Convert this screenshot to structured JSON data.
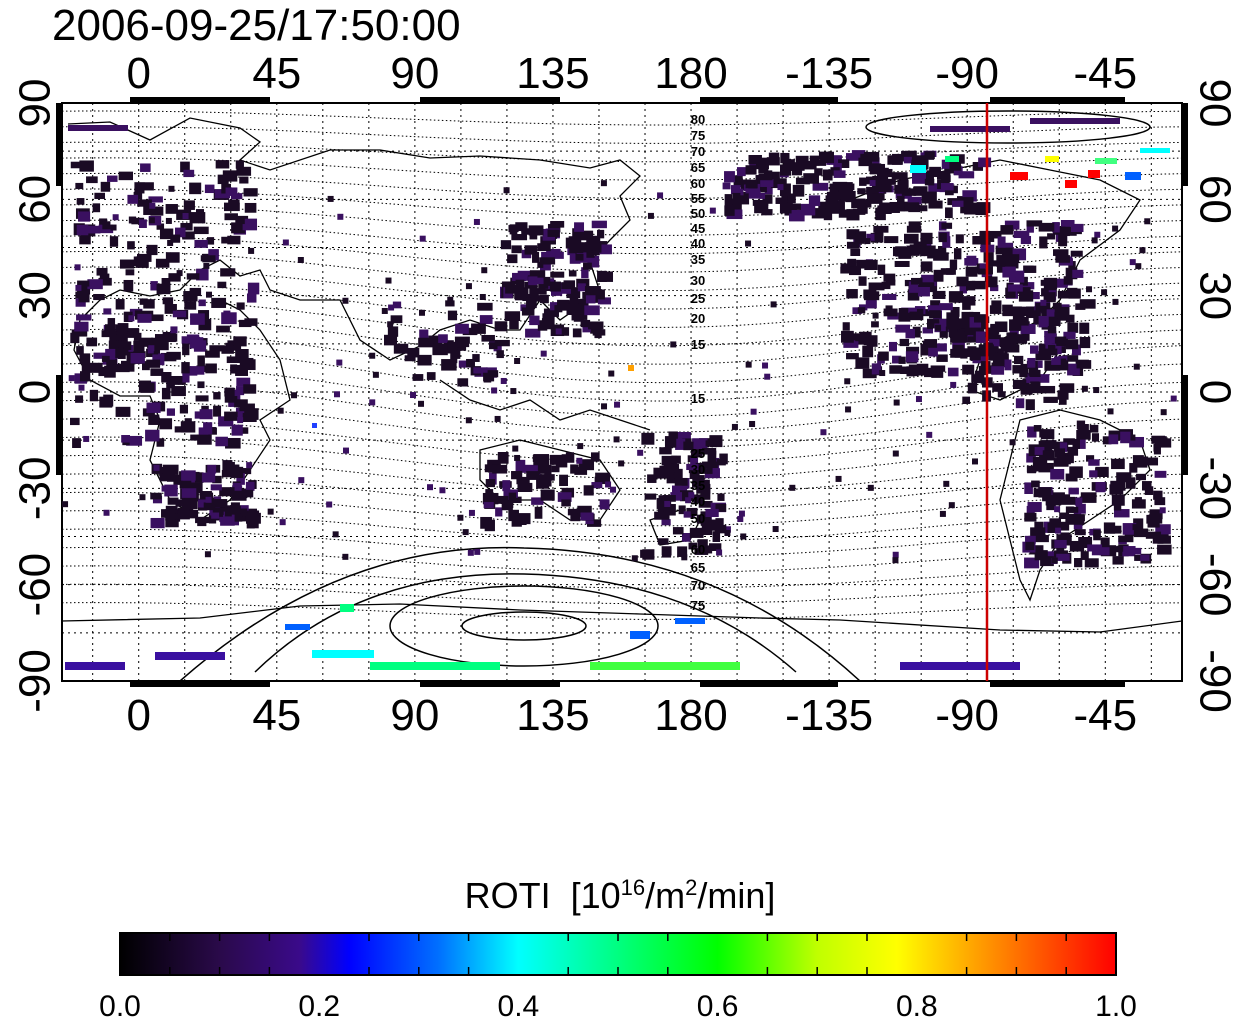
{
  "timestamp": "2006-09-25/17:50:00",
  "x_tick_labels": [
    "0",
    "45",
    "90",
    "135",
    "180",
    "-135",
    "-90",
    "-45"
  ],
  "y_tick_labels": [
    "90",
    "60",
    "30",
    "0",
    "-30",
    "-60",
    "-90"
  ],
  "colorbar": {
    "title_main": "ROTI",
    "title_unit_prefix": "[10",
    "title_unit_exp1": "16",
    "title_unit_mid": "/m",
    "title_unit_exp2": "2",
    "title_unit_suffix": "/min]",
    "tick_labels": [
      "0.0",
      "0.2",
      "0.4",
      "0.6",
      "0.8",
      "1.0"
    ],
    "range": [
      0.0,
      1.0
    ],
    "colors": [
      "#000000",
      "#2a0a4a",
      "#3a0a8a",
      "#0000ff",
      "#0080ff",
      "#00ffff",
      "#00ff80",
      "#00ff00",
      "#c0ff00",
      "#ffff00",
      "#ffa000",
      "#ff5000",
      "#ff0000"
    ]
  },
  "map": {
    "projection": "equirectangular",
    "lon_range": [
      -25,
      340
    ],
    "lat_range": [
      -90,
      90
    ],
    "grid": "dotted",
    "terminator_longitude": -90,
    "terminator_color": "#cc0000",
    "magnetic_latitude_labels": [
      "80",
      "75",
      "70",
      "65",
      "60",
      "55",
      "50",
      "45",
      "40",
      "35",
      "30",
      "25",
      "20",
      "15",
      "15",
      "25",
      "30",
      "35",
      "40",
      "50",
      "60",
      "65",
      "70",
      "75"
    ],
    "data_color_low": "#1a0a24",
    "data_color_mid": "#3a1060",
    "highlight_colors": [
      "#00ffff",
      "#00ff80",
      "#0060ff",
      "#ff0000",
      "#ffff00",
      "#ffa000"
    ]
  }
}
